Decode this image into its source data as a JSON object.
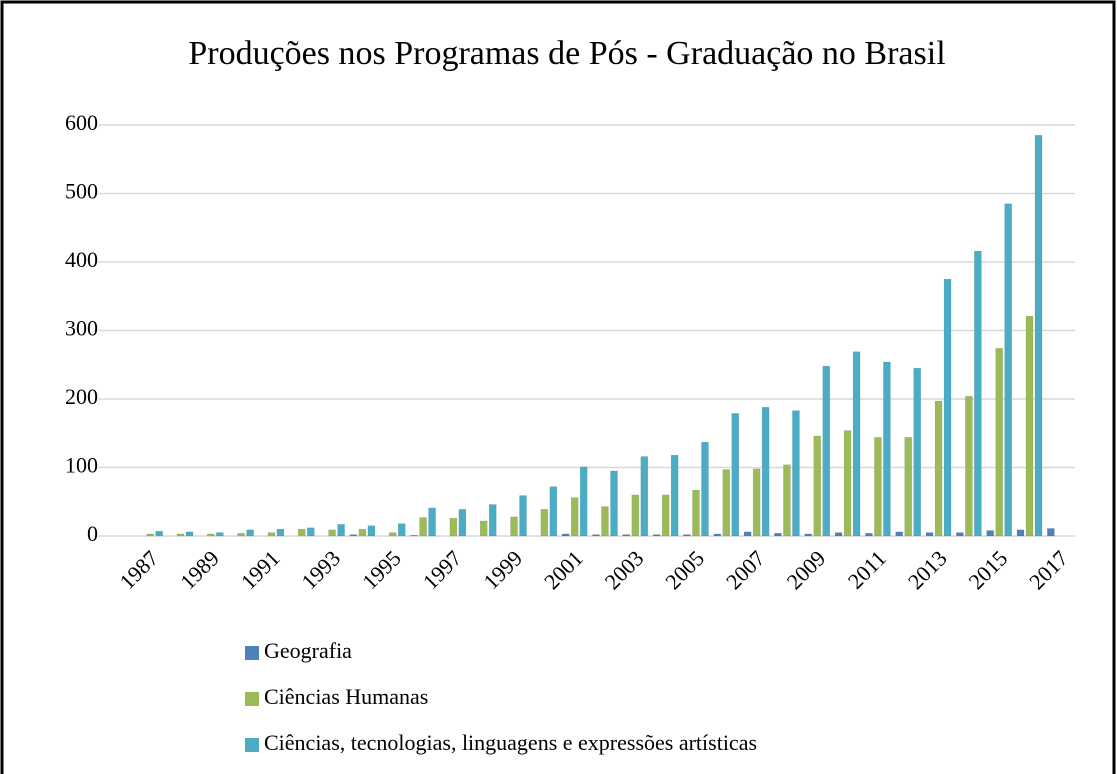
{
  "chart_data": {
    "type": "bar",
    "title": "Produções nos Programas de Pós - Graduação no Brasil",
    "categories": [
      "1987",
      null,
      "1989",
      null,
      "1991",
      null,
      "1993",
      null,
      "1995",
      null,
      "1997",
      null,
      "1999",
      null,
      "2001",
      null,
      "2003",
      null,
      "2005",
      null,
      "2007",
      null,
      "2009",
      null,
      "2011",
      null,
      "2013",
      null,
      "2015",
      null,
      "2017"
    ],
    "series": [
      {
        "name": "Geografia",
        "color": "#4f81bd",
        "values": [
          0,
          0,
          0,
          0,
          0,
          0,
          0,
          2,
          0,
          1,
          0,
          0,
          0,
          0,
          3,
          2,
          2,
          2,
          2,
          3,
          6,
          4,
          3,
          5,
          4,
          6,
          5,
          5,
          8,
          9,
          11
        ]
      },
      {
        "name": "Ciências Humanas",
        "color": "#9bbb59",
        "values": [
          3,
          3,
          3,
          4,
          5,
          10,
          9,
          10,
          5,
          27,
          26,
          22,
          28,
          39,
          56,
          43,
          60,
          60,
          67,
          97,
          98,
          104,
          146,
          154,
          144,
          144,
          197,
          204,
          274,
          321,
          null
        ]
      },
      {
        "name": "Ciências, tecnologias, linguagens e expressões artísticas",
        "color": "#4bacc6",
        "values": [
          7,
          6,
          5,
          9,
          10,
          12,
          17,
          15,
          18,
          41,
          39,
          46,
          59,
          72,
          101,
          95,
          116,
          118,
          137,
          179,
          188,
          183,
          248,
          269,
          254,
          245,
          375,
          416,
          485,
          585,
          null
        ]
      }
    ],
    "ylim": [
      0,
      600
    ],
    "yticks": [
      0,
      100,
      200,
      300,
      400,
      500,
      600
    ],
    "grid": true,
    "legend": "bottom"
  }
}
